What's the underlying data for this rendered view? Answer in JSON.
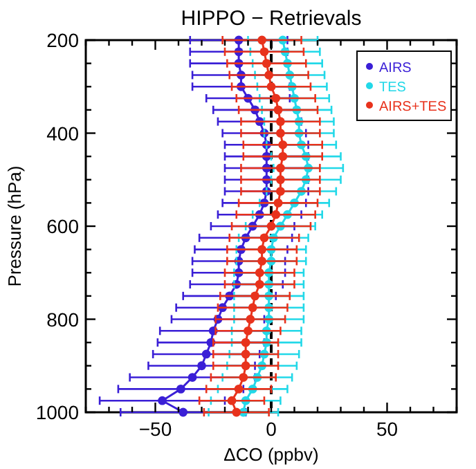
{
  "chart_data": {
    "type": "line",
    "title": "HIPPO − Retrievals",
    "xlabel": "ΔCO (ppbv)",
    "ylabel": "Pressure (hPa)",
    "xlim": [
      -80,
      80
    ],
    "ylim": [
      1000,
      200
    ],
    "xticks": [
      {
        "value": -80,
        "label": null
      },
      {
        "value": -70,
        "label": null
      },
      {
        "value": -60,
        "label": null
      },
      -50,
      {
        "value": -40,
        "label": null
      },
      {
        "value": -30,
        "label": null
      },
      {
        "value": -20,
        "label": null
      },
      {
        "value": -10,
        "label": null
      },
      0,
      {
        "value": 10,
        "label": null
      },
      {
        "value": 20,
        "label": null
      },
      {
        "value": 30,
        "label": null
      },
      {
        "value": 40,
        "label": null
      },
      50,
      {
        "value": 60,
        "label": null
      },
      {
        "value": 70,
        "label": null
      },
      {
        "value": 80,
        "label": null
      }
    ],
    "yticks": [
      200,
      {
        "value": 250,
        "label": null
      },
      {
        "value": 300,
        "label": null
      },
      {
        "value": 350,
        "label": null
      },
      400,
      {
        "value": 450,
        "label": null
      },
      {
        "value": 500,
        "label": null
      },
      {
        "value": 550,
        "label": null
      },
      600,
      {
        "value": 650,
        "label": null
      },
      {
        "value": 700,
        "label": null
      },
      {
        "value": 750,
        "label": null
      },
      800,
      {
        "value": 850,
        "label": null
      },
      {
        "value": 900,
        "label": null
      },
      {
        "value": 950,
        "label": null
      },
      1000
    ],
    "orientation": "horizontal",
    "marker": "circle",
    "line_style": "solid",
    "grid": false,
    "legend": "top right",
    "ref_lines": [
      {
        "axis": "x",
        "value": 0,
        "color": "#000000",
        "line_style": "dashed"
      }
    ],
    "series": [
      {
        "name": "AIRS",
        "color": "#3a1fd6",
        "values": [
          -14,
          -14,
          -14,
          -13,
          -13,
          -10,
          -7,
          -5,
          -3,
          -2,
          -2,
          -2,
          -2,
          -2,
          -3,
          -5,
          -8,
          -11,
          -13,
          -14,
          -14,
          -15,
          -18,
          -21,
          -23,
          -25,
          -26,
          -28,
          -30,
          -34,
          -39,
          -47,
          -38
        ],
        "x": [
          200,
          225,
          250,
          275,
          300,
          325,
          350,
          375,
          400,
          425,
          450,
          475,
          500,
          525,
          550,
          575,
          600,
          625,
          650,
          675,
          700,
          725,
          750,
          775,
          800,
          825,
          850,
          875,
          900,
          925,
          950,
          975,
          1000
        ],
        "errors": [
          21,
          21,
          21,
          21,
          21,
          18,
          18,
          18,
          18,
          18,
          18,
          18,
          18,
          18,
          18,
          18,
          18,
          20,
          20,
          20,
          20,
          20,
          20,
          20,
          20,
          23,
          23,
          23,
          23,
          27,
          27,
          27,
          27
        ]
      },
      {
        "name": "TES",
        "color": "#22d8e8",
        "values": [
          5,
          6,
          7,
          8,
          9,
          10,
          11,
          12,
          12,
          13,
          15,
          16,
          15,
          13,
          10,
          7,
          4,
          1,
          0,
          0,
          -1,
          -1,
          -1,
          -1,
          -1,
          -2,
          -2,
          -3,
          -4,
          -6,
          -8,
          -11,
          -12
        ],
        "x": [
          200,
          225,
          250,
          275,
          300,
          325,
          350,
          375,
          400,
          425,
          450,
          475,
          500,
          525,
          550,
          575,
          600,
          625,
          650,
          675,
          700,
          725,
          750,
          775,
          800,
          825,
          850,
          875,
          900,
          925,
          950,
          975,
          1000
        ],
        "errors": [
          15,
          15,
          15,
          15,
          15,
          15,
          15,
          15,
          15,
          15,
          15,
          15,
          15,
          15,
          15,
          15,
          15,
          15,
          15,
          15,
          15,
          15,
          15,
          15,
          15,
          15,
          15,
          15,
          15,
          15,
          15,
          15,
          15
        ]
      },
      {
        "name": "AIRS+TES",
        "color": "#e8321c",
        "values": [
          -4,
          -3,
          -2,
          -1,
          0,
          2,
          3,
          4,
          4,
          5,
          5,
          4,
          4,
          4,
          3,
          2,
          0,
          -3,
          -4,
          -4,
          -5,
          -5,
          -7,
          -8,
          -9,
          -10,
          -11,
          -11,
          -11,
          -12,
          -14,
          -17,
          -15
        ],
        "x": [
          200,
          225,
          250,
          275,
          300,
          325,
          350,
          375,
          400,
          425,
          450,
          475,
          500,
          525,
          550,
          575,
          600,
          625,
          650,
          675,
          700,
          725,
          750,
          775,
          800,
          825,
          850,
          875,
          900,
          925,
          950,
          975,
          1000
        ],
        "errors": [
          17,
          17,
          17,
          17,
          17,
          17,
          17,
          17,
          17,
          17,
          17,
          17,
          17,
          17,
          17,
          17,
          17,
          15,
          15,
          15,
          15,
          15,
          15,
          15,
          15,
          14,
          14,
          14,
          14,
          14,
          14,
          14,
          14
        ]
      }
    ]
  }
}
